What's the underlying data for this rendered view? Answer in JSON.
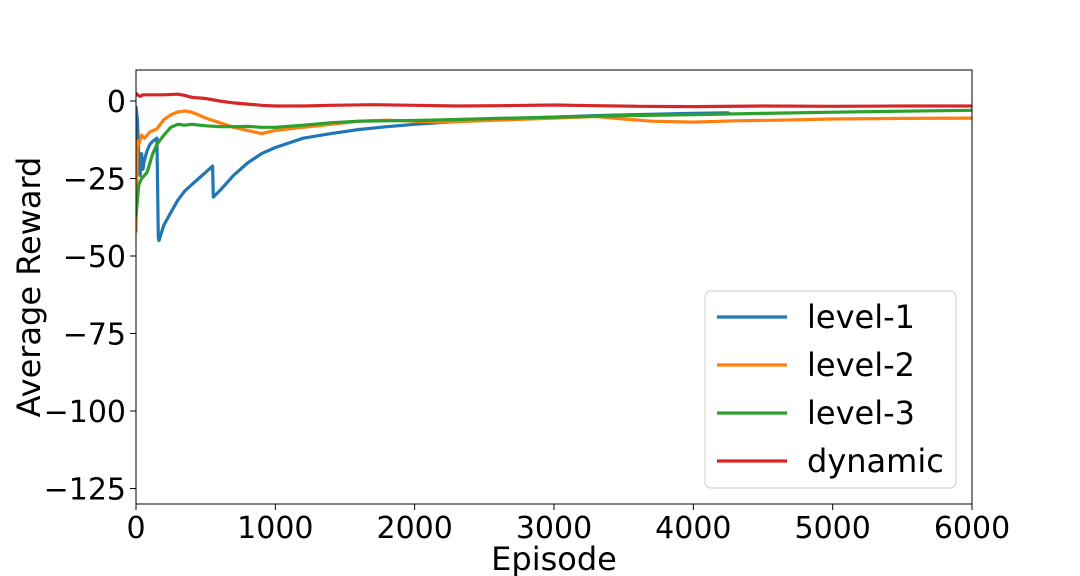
{
  "chart_data": {
    "type": "line",
    "title": "",
    "xlabel": "Episode",
    "ylabel": "Average Reward",
    "xlim": [
      0,
      6000
    ],
    "ylim": [
      -130,
      10
    ],
    "x_ticks": [
      0,
      1000,
      2000,
      3000,
      4000,
      5000,
      6000
    ],
    "x_tick_labels": [
      "0",
      "1000",
      "2000",
      "3000",
      "4000",
      "5000",
      "6000"
    ],
    "y_ticks": [
      0,
      -25,
      -50,
      -75,
      -100,
      -125
    ],
    "y_tick_labels": [
      "0",
      "−25",
      "−50",
      "−75",
      "−100",
      "−125"
    ],
    "grid": false,
    "legend_position": "lower-right",
    "series": [
      {
        "name": "level-1",
        "color": "#1f77b4",
        "x": [
          0,
          10,
          20,
          30,
          40,
          50,
          60,
          80,
          100,
          120,
          150,
          160,
          165,
          200,
          250,
          300,
          350,
          400,
          450,
          500,
          550,
          555,
          600,
          700,
          800,
          900,
          1000,
          1200,
          1400,
          1600,
          1800,
          2000,
          2300,
          2600,
          3000,
          3300,
          3600,
          4000,
          4250
        ],
        "y": [
          -2,
          -6,
          -18,
          -24,
          -17,
          -22,
          -19,
          -16,
          -14,
          -13,
          -12,
          -44,
          -45,
          -40,
          -36,
          -32,
          -29,
          -27,
          -25,
          -23,
          -21,
          -31,
          -29,
          -24,
          -20,
          -17,
          -15,
          -12,
          -10.5,
          -9.2,
          -8.3,
          -7.5,
          -6.6,
          -5.9,
          -5.2,
          -4.7,
          -4.4,
          -4.0,
          -3.8
        ]
      },
      {
        "name": "level-2",
        "color": "#ff7f0e",
        "x": [
          0,
          10,
          20,
          40,
          60,
          100,
          150,
          200,
          250,
          300,
          350,
          400,
          450,
          500,
          600,
          700,
          800,
          900,
          1000,
          1200,
          1400,
          1600,
          1800,
          2000,
          2200,
          2600,
          3000,
          3300,
          3500,
          3700,
          4000,
          4300,
          4600,
          5000,
          5500,
          6000
        ],
        "y": [
          -42,
          -13,
          -14,
          -11,
          -12,
          -10,
          -9,
          -6,
          -4.5,
          -3.5,
          -3.2,
          -3.6,
          -4.5,
          -5.5,
          -7,
          -8.5,
          -9.5,
          -10.5,
          -9.5,
          -8.5,
          -7.5,
          -6.5,
          -6.2,
          -6.5,
          -6.8,
          -6.2,
          -5.5,
          -5.0,
          -5.8,
          -6.5,
          -6.8,
          -6.4,
          -6.2,
          -5.8,
          -5.6,
          -5.5
        ]
      },
      {
        "name": "level-3",
        "color": "#2ca02c",
        "x": [
          0,
          10,
          20,
          40,
          60,
          80,
          100,
          120,
          150,
          200,
          250,
          300,
          350,
          400,
          500,
          600,
          700,
          800,
          900,
          1000,
          1200,
          1400,
          1600,
          1800,
          2000,
          2200,
          2600,
          3000,
          3400,
          4000,
          4500,
          5000,
          5500,
          6000
        ],
        "y": [
          -37,
          -32,
          -27,
          -25,
          -24,
          -23,
          -20,
          -17,
          -14,
          -11,
          -8.5,
          -7.5,
          -7.8,
          -7.5,
          -8,
          -8.3,
          -8.3,
          -8.2,
          -8.5,
          -8.5,
          -7.8,
          -7.0,
          -6.5,
          -6.4,
          -6.3,
          -6.1,
          -5.6,
          -5.2,
          -4.8,
          -4.4,
          -4.0,
          -3.6,
          -3.3,
          -3.0
        ]
      },
      {
        "name": "dynamic",
        "color": "#d62728",
        "x": [
          0,
          10,
          30,
          50,
          100,
          200,
          300,
          350,
          400,
          500,
          600,
          700,
          800,
          900,
          1000,
          1200,
          1400,
          1700,
          2000,
          2300,
          2600,
          3000,
          3300,
          3600,
          4000,
          4500,
          5000,
          5500,
          6000
        ],
        "y": [
          2.5,
          2,
          1.5,
          2,
          2,
          2,
          2.2,
          1.8,
          1.2,
          0.8,
          0,
          -0.6,
          -1.0,
          -1.4,
          -1.6,
          -1.6,
          -1.4,
          -1.2,
          -1.4,
          -1.6,
          -1.5,
          -1.3,
          -1.5,
          -1.7,
          -1.8,
          -1.6,
          -1.7,
          -1.6,
          -1.6
        ]
      }
    ]
  }
}
